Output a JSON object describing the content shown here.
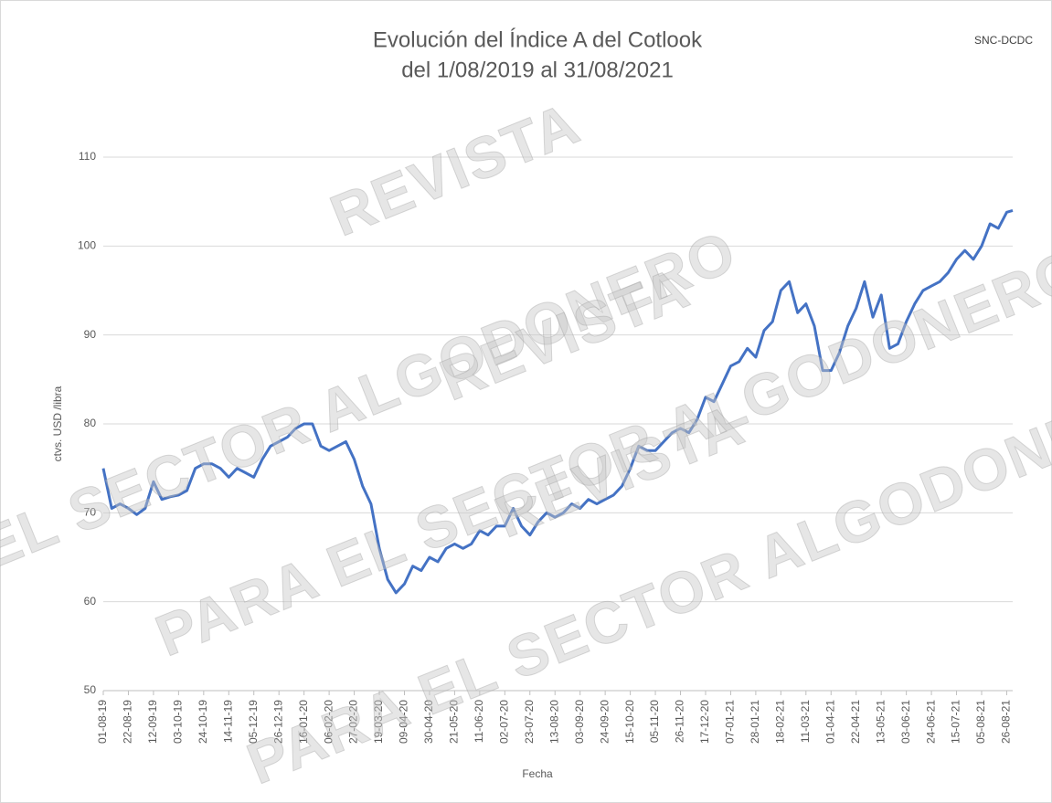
{
  "chart_data": {
    "type": "line",
    "title": [
      "Evolución del Índice A del Cotlook",
      "del 1/08/2019 al 31/08/2021"
    ],
    "source": "SNC-DCDC",
    "watermark": [
      "REVISTA",
      "PARA EL SECTOR ALGODONERO"
    ],
    "xlabel": "Fecha",
    "ylabel": "ctvs. USD /libra",
    "x": [
      "2019-08-01",
      "2019-08-08",
      "2019-08-15",
      "2019-08-22",
      "2019-08-29",
      "2019-09-05",
      "2019-09-12",
      "2019-09-19",
      "2019-09-26",
      "2019-10-03",
      "2019-10-10",
      "2019-10-17",
      "2019-10-24",
      "2019-10-31",
      "2019-11-07",
      "2019-11-14",
      "2019-11-21",
      "2019-11-28",
      "2019-12-05",
      "2019-12-12",
      "2019-12-19",
      "2019-12-26",
      "2020-01-02",
      "2020-01-09",
      "2020-01-16",
      "2020-01-23",
      "2020-01-30",
      "2020-02-06",
      "2020-02-13",
      "2020-02-20",
      "2020-02-27",
      "2020-03-05",
      "2020-03-12",
      "2020-03-19",
      "2020-03-26",
      "2020-04-02",
      "2020-04-09",
      "2020-04-16",
      "2020-04-23",
      "2020-04-30",
      "2020-05-07",
      "2020-05-14",
      "2020-05-21",
      "2020-05-28",
      "2020-06-04",
      "2020-06-11",
      "2020-06-18",
      "2020-06-25",
      "2020-07-02",
      "2020-07-09",
      "2020-07-16",
      "2020-07-23",
      "2020-07-30",
      "2020-08-06",
      "2020-08-13",
      "2020-08-20",
      "2020-08-27",
      "2020-09-03",
      "2020-09-10",
      "2020-09-17",
      "2020-09-24",
      "2020-10-01",
      "2020-10-08",
      "2020-10-15",
      "2020-10-22",
      "2020-10-29",
      "2020-11-05",
      "2020-11-12",
      "2020-11-19",
      "2020-11-26",
      "2020-12-03",
      "2020-12-10",
      "2020-12-17",
      "2020-12-24",
      "2020-12-31",
      "2021-01-07",
      "2021-01-14",
      "2021-01-21",
      "2021-01-28",
      "2021-02-04",
      "2021-02-11",
      "2021-02-18",
      "2021-02-25",
      "2021-03-04",
      "2021-03-11",
      "2021-03-18",
      "2021-03-25",
      "2021-04-01",
      "2021-04-08",
      "2021-04-15",
      "2021-04-22",
      "2021-04-29",
      "2021-05-06",
      "2021-05-13",
      "2021-05-20",
      "2021-05-27",
      "2021-06-03",
      "2021-06-10",
      "2021-06-17",
      "2021-06-24",
      "2021-07-01",
      "2021-07-08",
      "2021-07-15",
      "2021-07-22",
      "2021-07-29",
      "2021-08-05",
      "2021-08-12",
      "2021-08-19",
      "2021-08-26",
      "2021-08-31"
    ],
    "series": [
      {
        "name": "Índice A",
        "color": "#4472c4",
        "values": [
          75,
          70.5,
          71,
          70.5,
          69.8,
          70.5,
          73.5,
          71.5,
          71.8,
          72,
          72.5,
          75,
          75.5,
          75.5,
          75,
          74,
          75,
          74.5,
          74,
          76,
          77.5,
          78,
          78.5,
          79.5,
          80,
          80,
          77.5,
          77,
          77.5,
          78,
          76,
          73,
          71,
          66,
          62.5,
          61,
          62,
          64,
          63.5,
          65,
          64.5,
          66,
          66.5,
          66,
          66.5,
          68,
          67.5,
          68.5,
          68.5,
          70.5,
          68.5,
          67.5,
          69,
          70,
          69.5,
          70,
          71,
          70.5,
          71.5,
          71,
          71.5,
          72,
          73,
          75,
          77.5,
          77,
          77,
          78,
          79,
          79.5,
          79,
          80.5,
          83,
          82.5,
          84.5,
          86.5,
          87,
          88.5,
          87.5,
          90.5,
          91.5,
          95,
          96,
          92.5,
          93.5,
          91,
          86,
          86,
          88,
          91,
          93,
          96,
          92,
          94.5,
          88.5,
          89,
          91.5,
          93.5,
          95,
          95.5,
          96,
          97,
          98.5,
          99.5,
          98.5,
          100,
          102.5,
          102,
          103.8,
          104
        ]
      }
    ],
    "xlim": [
      "2019-08-01",
      "2021-08-31"
    ],
    "xticks": [
      {
        "value": "2019-08-01",
        "label": "01-08-19"
      },
      {
        "value": "2019-08-22",
        "label": "22-08-19"
      },
      {
        "value": "2019-09-12",
        "label": "12-09-19"
      },
      {
        "value": "2019-10-03",
        "label": "03-10-19"
      },
      {
        "value": "2019-10-24",
        "label": "24-10-19"
      },
      {
        "value": "2019-11-14",
        "label": "14-11-19"
      },
      {
        "value": "2019-12-05",
        "label": "05-12-19"
      },
      {
        "value": "2019-12-26",
        "label": "26-12-19"
      },
      {
        "value": "2020-01-16",
        "label": "16-01-20"
      },
      {
        "value": "2020-02-06",
        "label": "06-02-20"
      },
      {
        "value": "2020-02-27",
        "label": "27-02-20"
      },
      {
        "value": "2020-03-19",
        "label": "19-03-20"
      },
      {
        "value": "2020-04-09",
        "label": "09-04-20"
      },
      {
        "value": "2020-04-30",
        "label": "30-04-20"
      },
      {
        "value": "2020-05-21",
        "label": "21-05-20"
      },
      {
        "value": "2020-06-11",
        "label": "11-06-20"
      },
      {
        "value": "2020-07-02",
        "label": "02-07-20"
      },
      {
        "value": "2020-07-23",
        "label": "23-07-20"
      },
      {
        "value": "2020-08-13",
        "label": "13-08-20"
      },
      {
        "value": "2020-09-03",
        "label": "03-09-20"
      },
      {
        "value": "2020-09-24",
        "label": "24-09-20"
      },
      {
        "value": "2020-10-15",
        "label": "15-10-20"
      },
      {
        "value": "2020-11-05",
        "label": "05-11-20"
      },
      {
        "value": "2020-11-26",
        "label": "26-11-20"
      },
      {
        "value": "2020-12-17",
        "label": "17-12-20"
      },
      {
        "value": "2021-01-07",
        "label": "07-01-21"
      },
      {
        "value": "2021-01-28",
        "label": "28-01-21"
      },
      {
        "value": "2021-02-18",
        "label": "18-02-21"
      },
      {
        "value": "2021-03-11",
        "label": "11-03-21"
      },
      {
        "value": "2021-04-01",
        "label": "01-04-21"
      },
      {
        "value": "2021-04-22",
        "label": "22-04-21"
      },
      {
        "value": "2021-05-13",
        "label": "13-05-21"
      },
      {
        "value": "2021-06-03",
        "label": "03-06-21"
      },
      {
        "value": "2021-06-24",
        "label": "24-06-21"
      },
      {
        "value": "2021-07-15",
        "label": "15-07-21"
      },
      {
        "value": "2021-08-05",
        "label": "05-08-21"
      },
      {
        "value": "2021-08-26",
        "label": "26-08-21"
      }
    ],
    "ylim": [
      50,
      110
    ],
    "yticks": [
      50,
      60,
      70,
      80,
      90,
      100,
      110
    ],
    "grid": true
  }
}
